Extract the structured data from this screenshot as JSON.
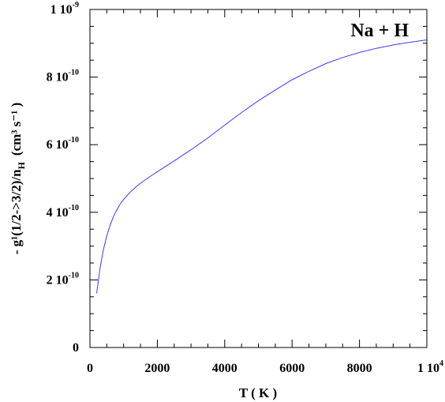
{
  "chart_data": {
    "type": "line",
    "annotation": "Na + H",
    "xlabel": "T ( K )",
    "ylabel": "- g¹(1/2->3/2)/n",
    "ylabel_sub": "H",
    "ylabel_units": "(cm³ s⁻¹ )",
    "xlim": [
      0,
      10000
    ],
    "ylim": [
      0,
      1e-09
    ],
    "x_ticks": [
      {
        "value": 0,
        "label": "0",
        "exp": ""
      },
      {
        "value": 2000,
        "label": "2000",
        "exp": ""
      },
      {
        "value": 4000,
        "label": "4000",
        "exp": ""
      },
      {
        "value": 6000,
        "label": "6000",
        "exp": ""
      },
      {
        "value": 8000,
        "label": "8000",
        "exp": ""
      },
      {
        "value": 10000,
        "label": "1 10",
        "exp": "4"
      }
    ],
    "y_ticks": [
      {
        "value": 0,
        "label": "0",
        "exp": ""
      },
      {
        "value": 2e-10,
        "label": "2 10",
        "exp": "-10"
      },
      {
        "value": 4e-10,
        "label": "4 10",
        "exp": "-10"
      },
      {
        "value": 6e-10,
        "label": "6 10",
        "exp": "-10"
      },
      {
        "value": 8e-10,
        "label": "8 10",
        "exp": "-10"
      },
      {
        "value": 1e-09,
        "label": "1 10",
        "exp": "-9"
      }
    ],
    "series": [
      {
        "color": "#3a3aff",
        "x": [
          200,
          300,
          400,
          500,
          600,
          700,
          800,
          900,
          1000,
          1200,
          1400,
          1600,
          1800,
          2000,
          2500,
          3000,
          3500,
          4000,
          4500,
          5000,
          5500,
          6000,
          6500,
          7000,
          7500,
          8000,
          8500,
          9000,
          9500,
          10000
        ],
        "y": [
          1.6e-10,
          2.35e-10,
          2.9e-10,
          3.3e-10,
          3.62e-10,
          3.88e-10,
          4.08e-10,
          4.25e-10,
          4.38e-10,
          4.6e-10,
          4.78e-10,
          4.93e-10,
          5.07e-10,
          5.2e-10,
          5.52e-10,
          5.85e-10,
          6.2e-10,
          6.58e-10,
          6.95e-10,
          7.3e-10,
          7.62e-10,
          7.92e-10,
          8.17e-10,
          8.4e-10,
          8.58e-10,
          8.73e-10,
          8.85e-10,
          8.95e-10,
          9.03e-10,
          9.1e-10
        ]
      }
    ]
  }
}
